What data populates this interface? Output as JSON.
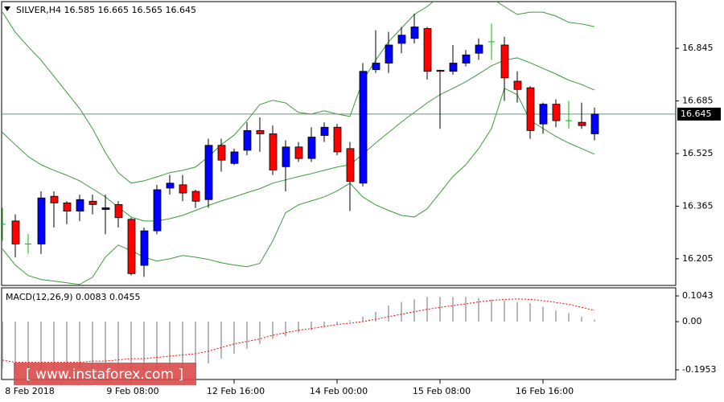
{
  "chart_data": [
    {
      "type": "candlestick",
      "title": "SILVER,H4  16.585 16.665 16.565 16.645",
      "categories": [
        null,
        null,
        "8 Feb 2018",
        null,
        null,
        null,
        null,
        null,
        null,
        null,
        "9 Feb 08:00",
        null,
        null,
        null,
        null,
        null,
        null,
        null,
        "12 Feb 16:00",
        null,
        null,
        null,
        null,
        null,
        null,
        null,
        "14 Feb 00:00",
        null,
        null,
        null,
        null,
        null,
        null,
        null,
        "15 Feb 08:00",
        null,
        null,
        null,
        null,
        null,
        null,
        null,
        "16 Feb 16:00",
        null,
        null,
        null,
        null
      ],
      "open": [
        16.31,
        16.32,
        16.25,
        16.25,
        16.395,
        16.375,
        16.35,
        16.38,
        16.355,
        16.37,
        16.325,
        16.185,
        16.29,
        16.42,
        16.43,
        16.41,
        16.385,
        16.55,
        16.495,
        16.535,
        16.595,
        16.585,
        16.485,
        16.545,
        16.51,
        16.58,
        16.605,
        16.54,
        16.435,
        16.78,
        16.8,
        16.86,
        16.875,
        16.905,
        16.778,
        16.775,
        16.8,
        16.83,
        16.865,
        16.855,
        16.745,
        16.725,
        16.615,
        16.675,
        16.625,
        16.62,
        16.585
      ],
      "high": [
        16.36,
        16.34,
        16.28,
        16.41,
        16.41,
        16.38,
        16.4,
        16.4,
        16.4,
        16.38,
        16.33,
        16.3,
        16.43,
        16.46,
        16.46,
        16.415,
        16.57,
        16.57,
        16.54,
        16.62,
        16.635,
        16.61,
        16.565,
        16.56,
        16.605,
        16.62,
        16.615,
        16.56,
        16.8,
        16.9,
        16.895,
        16.91,
        16.95,
        16.91,
        16.78,
        16.855,
        16.84,
        16.875,
        16.92,
        16.88,
        16.775,
        16.73,
        16.68,
        16.69,
        16.685,
        16.68,
        16.665
      ],
      "low": [
        16.26,
        16.21,
        16.22,
        16.22,
        16.3,
        16.31,
        16.32,
        16.34,
        16.28,
        16.3,
        16.155,
        16.15,
        16.28,
        16.4,
        16.38,
        16.36,
        16.36,
        16.47,
        16.49,
        16.52,
        16.53,
        16.46,
        16.41,
        16.5,
        16.5,
        16.56,
        16.52,
        16.35,
        16.425,
        16.77,
        16.77,
        16.83,
        16.86,
        16.75,
        16.6,
        16.765,
        16.79,
        16.81,
        16.81,
        16.685,
        16.68,
        16.57,
        16.585,
        16.605,
        16.6,
        16.6,
        16.565
      ],
      "close": [
        16.31,
        16.25,
        16.25,
        16.39,
        16.375,
        16.35,
        16.385,
        16.37,
        16.36,
        16.33,
        16.16,
        16.29,
        16.415,
        16.435,
        16.405,
        16.38,
        16.55,
        16.505,
        16.53,
        16.595,
        16.585,
        16.475,
        16.545,
        16.51,
        16.575,
        16.605,
        16.53,
        16.44,
        16.775,
        16.8,
        16.855,
        16.885,
        16.91,
        16.775,
        16.775,
        16.8,
        16.825,
        16.855,
        16.865,
        16.755,
        16.72,
        16.595,
        16.675,
        16.625,
        16.625,
        16.61,
        16.645
      ],
      "up_color": "#0000ff",
      "down_color": "#ff0000",
      "doji_color": "#00c000",
      "overlays": [
        {
          "color": "#3c9a3c",
          "values": [
            16.955,
            16.894,
            16.85,
            16.809,
            16.76,
            16.711,
            16.662,
            16.601,
            16.528,
            16.467,
            16.435,
            16.442,
            16.454,
            16.467,
            16.474,
            16.484,
            16.515,
            16.552,
            16.581,
            16.625,
            16.674,
            16.687,
            16.679,
            16.65,
            16.645,
            16.655,
            16.645,
            16.638,
            16.747,
            16.809,
            16.865,
            16.906,
            16.948,
            16.972,
            17.004,
            17.016,
            17.021,
            17.012,
            16.997,
            16.972,
            16.948,
            16.955,
            16.955,
            16.943,
            16.924,
            16.919,
            16.911
          ]
        },
        {
          "color": "#3c9a3c",
          "values": [
            16.589,
            16.552,
            16.516,
            16.491,
            16.474,
            16.459,
            16.442,
            16.418,
            16.393,
            16.362,
            16.332,
            16.32,
            16.32,
            16.327,
            16.337,
            16.352,
            16.367,
            16.381,
            16.393,
            16.406,
            16.418,
            16.435,
            16.445,
            16.455,
            16.464,
            16.474,
            16.484,
            16.491,
            16.523,
            16.557,
            16.589,
            16.621,
            16.65,
            16.679,
            16.704,
            16.723,
            16.743,
            16.767,
            16.792,
            16.809,
            16.816,
            16.801,
            16.784,
            16.767,
            16.748,
            16.735,
            16.718
          ]
        },
        {
          "color": "#3c9a3c",
          "values": [
            16.235,
            16.186,
            16.154,
            16.142,
            16.137,
            16.132,
            16.127,
            16.149,
            16.21,
            16.247,
            16.23,
            16.21,
            16.198,
            16.205,
            16.215,
            16.21,
            16.203,
            16.193,
            16.186,
            16.181,
            16.191,
            16.259,
            16.345,
            16.369,
            16.381,
            16.393,
            16.411,
            16.435,
            16.393,
            16.369,
            16.352,
            16.337,
            16.332,
            16.357,
            16.406,
            16.455,
            16.491,
            16.54,
            16.601,
            16.723,
            16.704,
            16.626,
            16.601,
            16.577,
            16.557,
            16.54,
            16.523
          ]
        }
      ],
      "current_price": 16.645,
      "ylim": [
        16.124,
        16.987
      ],
      "yticks": [
        16.205,
        16.365,
        16.525,
        16.685,
        16.845
      ]
    },
    {
      "type": "macd",
      "title": "MACD(12,26,9) 0.0083 0.0455",
      "series": [
        {
          "color": "#a0a0a0",
          "style": "histogram",
          "values": [
            -0.19,
            -0.195,
            -0.195,
            -0.19,
            -0.19,
            -0.19,
            -0.19,
            -0.19,
            -0.19,
            -0.19,
            -0.195,
            -0.2,
            -0.195,
            -0.19,
            -0.19,
            -0.19,
            -0.17,
            -0.15,
            -0.13,
            -0.11,
            -0.09,
            -0.07,
            -0.06,
            -0.045,
            -0.035,
            -0.02,
            -0.01,
            0.005,
            0.02,
            0.04,
            0.065,
            0.08,
            0.09,
            0.1,
            0.1,
            0.1,
            0.1,
            0.095,
            0.09,
            0.085,
            0.08,
            0.075,
            0.06,
            0.045,
            0.035,
            0.02,
            0.0083
          ]
        },
        {
          "color": "#ff0000",
          "style": "dashed",
          "values": [
            -0.156,
            -0.165,
            -0.165,
            -0.165,
            -0.165,
            -0.165,
            -0.165,
            -0.16,
            -0.16,
            -0.155,
            -0.15,
            -0.15,
            -0.145,
            -0.14,
            -0.135,
            -0.13,
            -0.12,
            -0.105,
            -0.09,
            -0.08,
            -0.07,
            -0.055,
            -0.045,
            -0.035,
            -0.028,
            -0.02,
            -0.012,
            -0.006,
            0,
            0.01,
            0.02,
            0.03,
            0.04,
            0.05,
            0.058,
            0.065,
            0.072,
            0.08,
            0.086,
            0.09,
            0.092,
            0.09,
            0.085,
            0.078,
            0.07,
            0.058,
            0.0455
          ]
        }
      ],
      "ylim": [
        -0.2345,
        0.137
      ],
      "yticks": [
        -0.1953,
        {
          "value": 0,
          "label": "0.00"
        },
        0.1043
      ]
    }
  ],
  "watermark": "[  www.instaforex.com  ]"
}
